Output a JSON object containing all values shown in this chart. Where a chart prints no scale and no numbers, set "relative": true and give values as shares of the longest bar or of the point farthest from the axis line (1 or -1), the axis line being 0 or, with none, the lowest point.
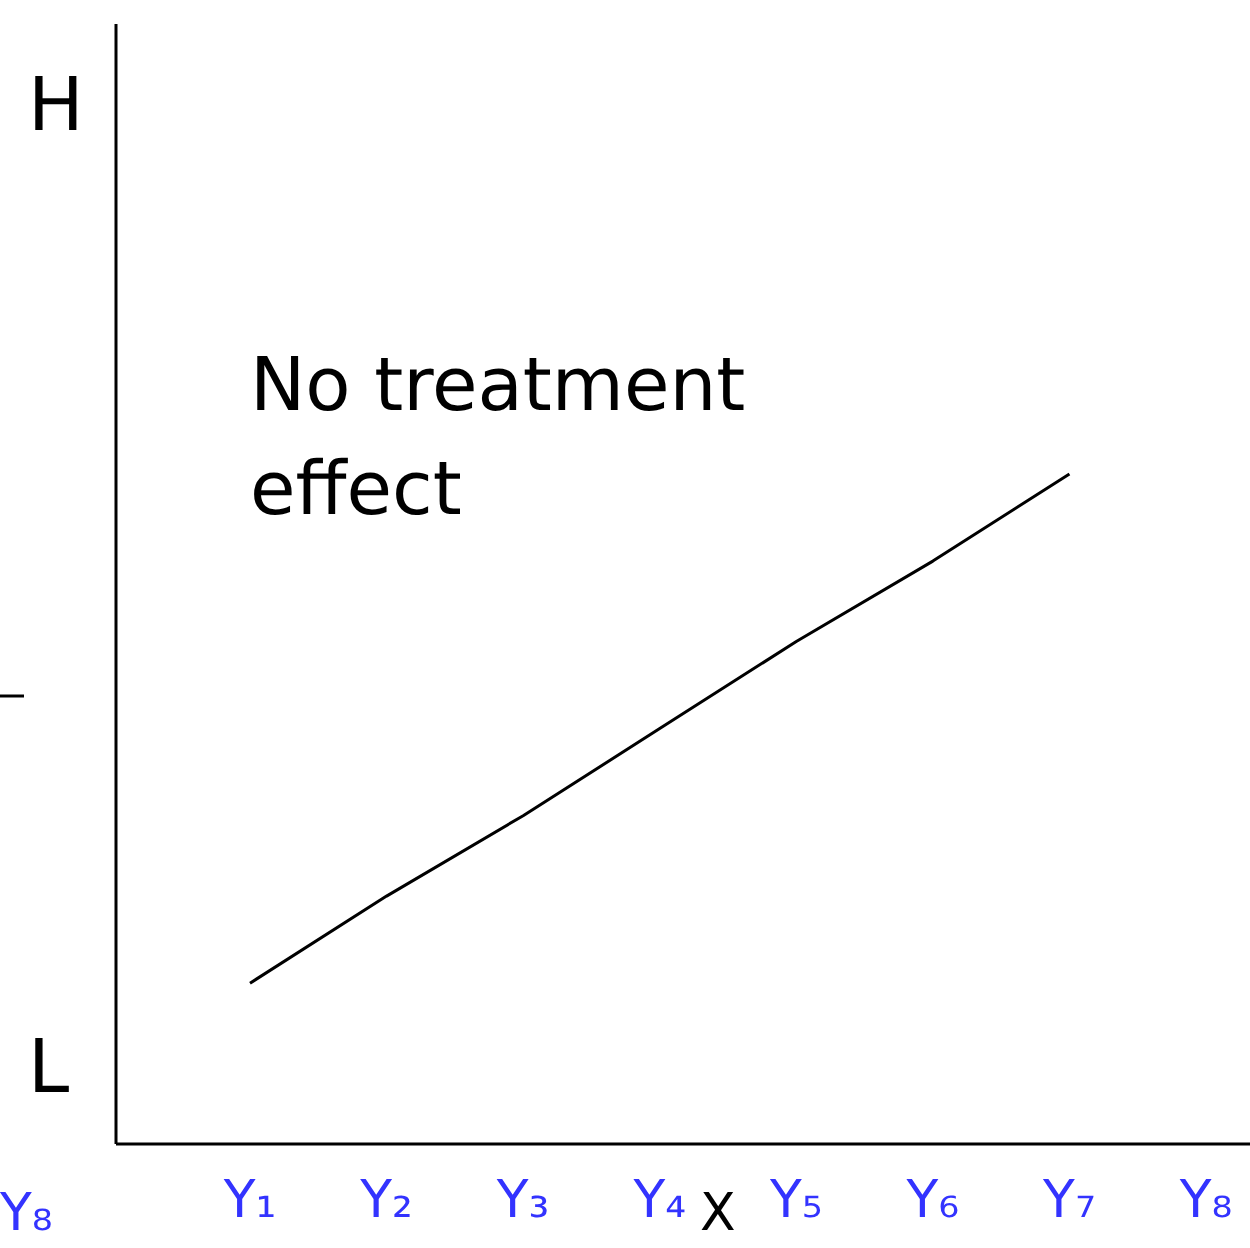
{
  "chart_data": {
    "type": "line",
    "relative": true,
    "categories": [
      "Y₁",
      "Y₂",
      "Y₃",
      "Y₄",
      "Y₅",
      "Y₆",
      "Y₇",
      "Y₈"
    ],
    "series": [
      {
        "color": "#000000",
        "values": [
          0.24,
          0.37,
          0.49,
          0.62,
          0.75,
          0.87,
          1,
          null
        ]
      }
    ],
    "marker": "none",
    "line_style": "solid",
    "grid": false,
    "annotations": [
      "No treatment effect",
      "H",
      "L",
      "X",
      "Y₈"
    ]
  }
}
